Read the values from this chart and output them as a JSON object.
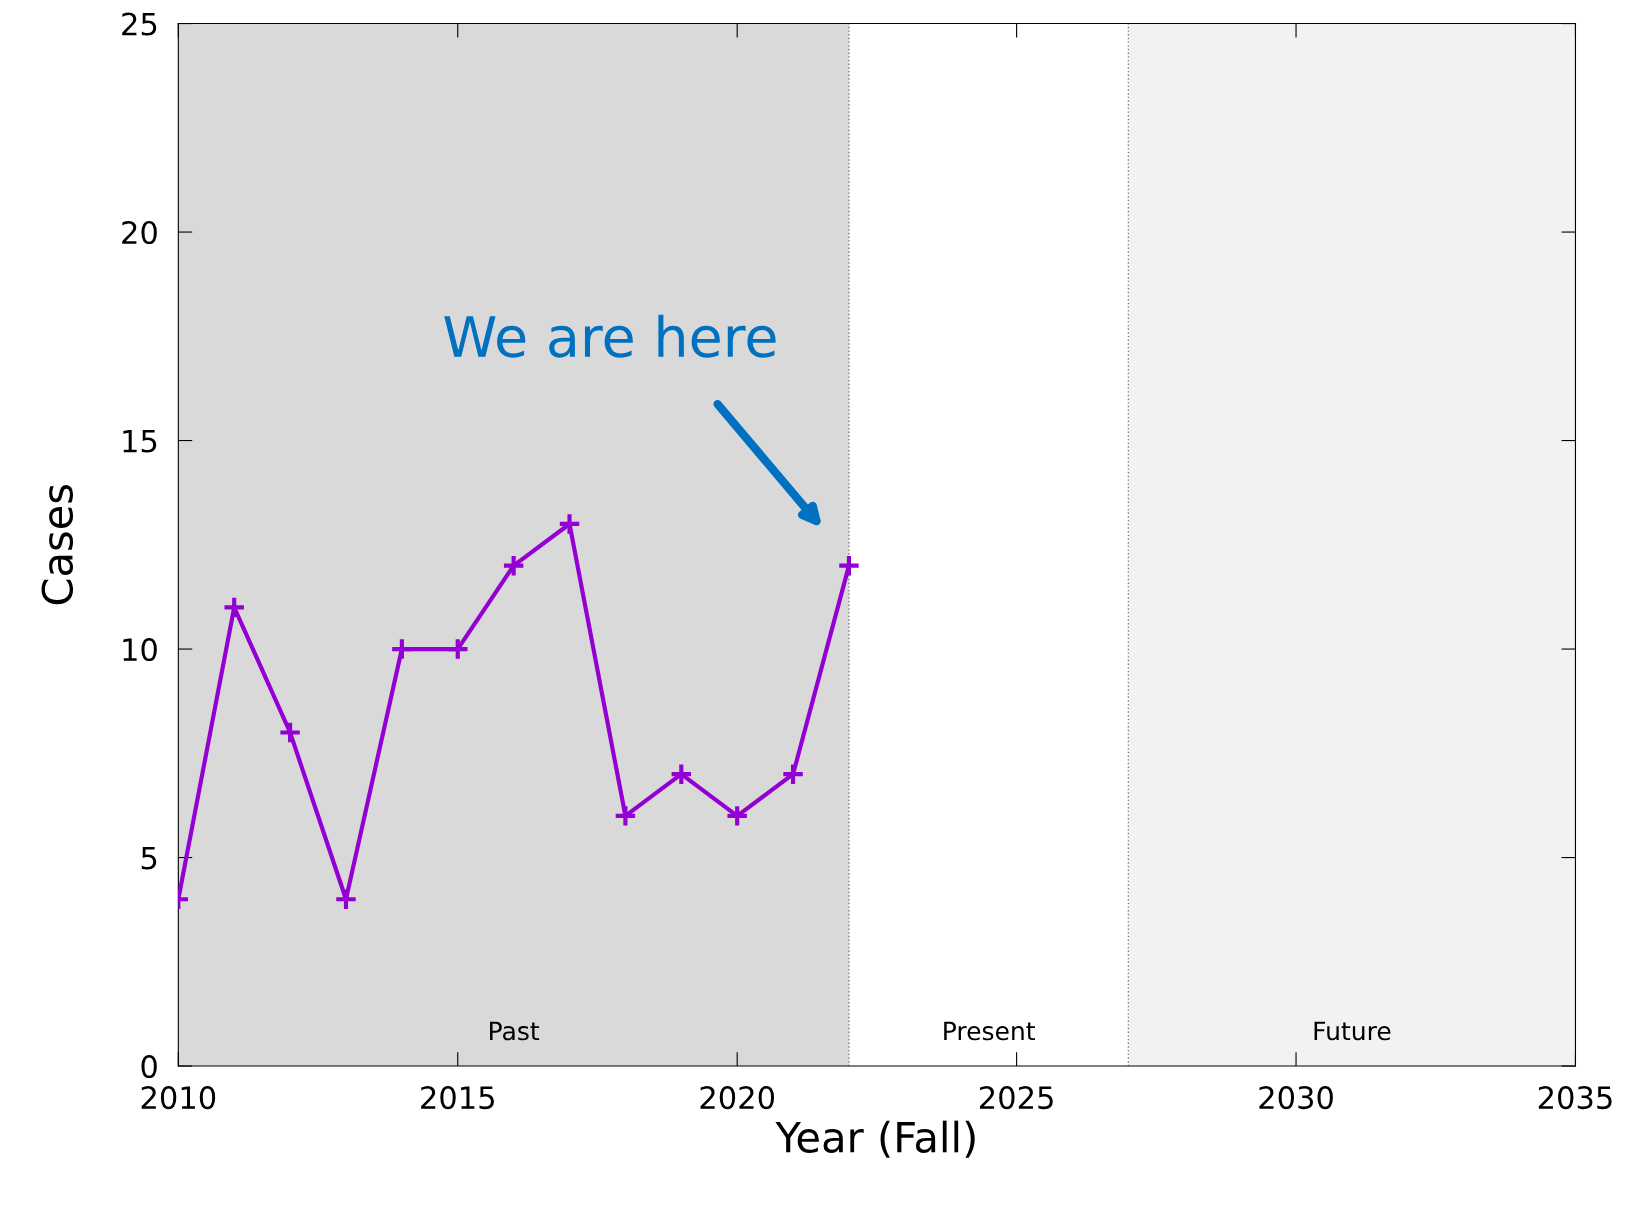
{
  "chart_data": {
    "type": "line",
    "xlabel": "Year (Fall)",
    "ylabel": "Cases",
    "x": [
      2010,
      2011,
      2012,
      2013,
      2014,
      2015,
      2016,
      2017,
      2018,
      2019,
      2020,
      2021,
      2022
    ],
    "series": [
      {
        "color": "#9400d3",
        "values": [
          4,
          11,
          8,
          4,
          10,
          10,
          12,
          13,
          6,
          7,
          6,
          7,
          12
        ]
      }
    ],
    "xlim": [
      2010,
      2035
    ],
    "xticks": [
      2010,
      2015,
      2020,
      2025,
      2030,
      2035
    ],
    "ylim": [
      0,
      25
    ],
    "yticks": [
      0,
      5,
      10,
      15,
      20,
      25
    ],
    "bands": [
      {
        "axis": "x",
        "from": 2010,
        "to": 2022,
        "label": "Past",
        "color": "#d9d9d9"
      },
      {
        "axis": "x",
        "from": 2027,
        "to": 2035,
        "label": "Future",
        "color": "#f2f2f2"
      }
    ],
    "ref_lines": [
      {
        "axis": "x",
        "value": 2022,
        "color": "#808080",
        "line_style": "dotted"
      },
      {
        "axis": "x",
        "value": 2027,
        "color": "#808080",
        "line_style": "dotted"
      }
    ],
    "annotations": [
      "We are here",
      "Present"
    ],
    "marker": "cross",
    "line_style": "solid",
    "grid": false,
    "legend": false
  }
}
